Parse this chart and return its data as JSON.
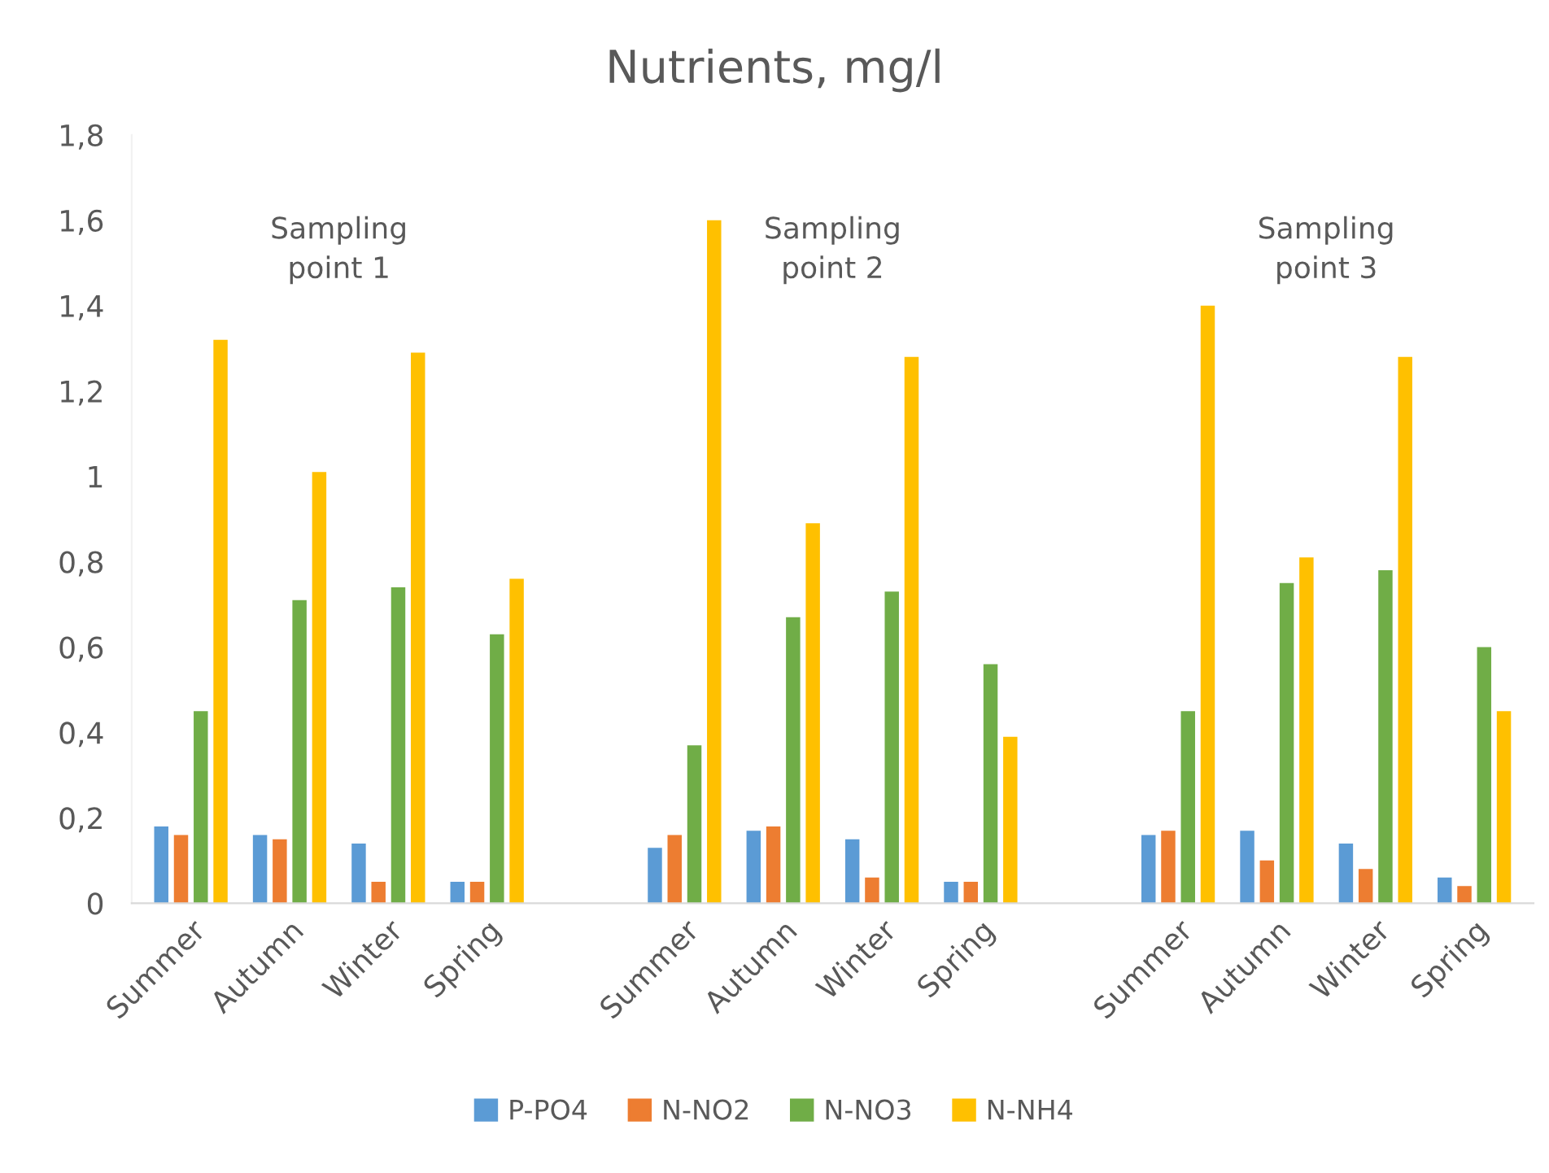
{
  "chart_data": {
    "type": "bar",
    "title": "Nutrients, mg/l",
    "categories": [
      "Summer",
      "Autumn",
      "Winter",
      "Spring",
      null,
      "Summer",
      "Autumn",
      "Winter",
      "Spring",
      null,
      "Summer",
      "Autumn",
      "Winter",
      "Spring"
    ],
    "series": [
      {
        "name": "P-PO4",
        "color": "#5b9bd5",
        "values": [
          0.18,
          0.16,
          0.14,
          0.05,
          null,
          0.13,
          0.17,
          0.15,
          0.05,
          null,
          0.16,
          0.17,
          0.14,
          0.06
        ]
      },
      {
        "name": "N-NO2",
        "color": "#ed7d31",
        "values": [
          0.16,
          0.15,
          0.05,
          0.05,
          null,
          0.16,
          0.18,
          0.06,
          0.05,
          null,
          0.17,
          0.1,
          0.08,
          0.04
        ]
      },
      {
        "name": "N-NO3",
        "color": "#70ad47",
        "values": [
          0.45,
          0.71,
          0.74,
          0.63,
          null,
          0.37,
          0.67,
          0.73,
          0.56,
          null,
          0.45,
          0.75,
          0.78,
          0.6
        ]
      },
      {
        "name": "N-NH4",
        "color": "#ffc000",
        "values": [
          1.32,
          1.01,
          1.29,
          0.76,
          null,
          1.6,
          0.89,
          1.28,
          0.39,
          null,
          1.4,
          0.81,
          1.28,
          0.45
        ]
      }
    ],
    "annotations": [
      "Sampling\npoint 1",
      "Sampling\npoint 2",
      "Sampling\npoint 3"
    ],
    "ylim": [
      0,
      1.8
    ],
    "yticks": [
      0,
      {
        "value": 0.2,
        "label": "0,2"
      },
      {
        "value": 0.4,
        "label": "0,4"
      },
      {
        "value": 0.6,
        "label": "0,6"
      },
      {
        "value": 0.8,
        "label": "0,8"
      },
      1,
      {
        "value": 1.2,
        "label": "1,2"
      },
      {
        "value": 1.4,
        "label": "1,4"
      },
      {
        "value": 1.6,
        "label": "1,6"
      },
      {
        "value": 1.8,
        "label": "1,8"
      }
    ],
    "grid": false,
    "legend": "bottom"
  }
}
